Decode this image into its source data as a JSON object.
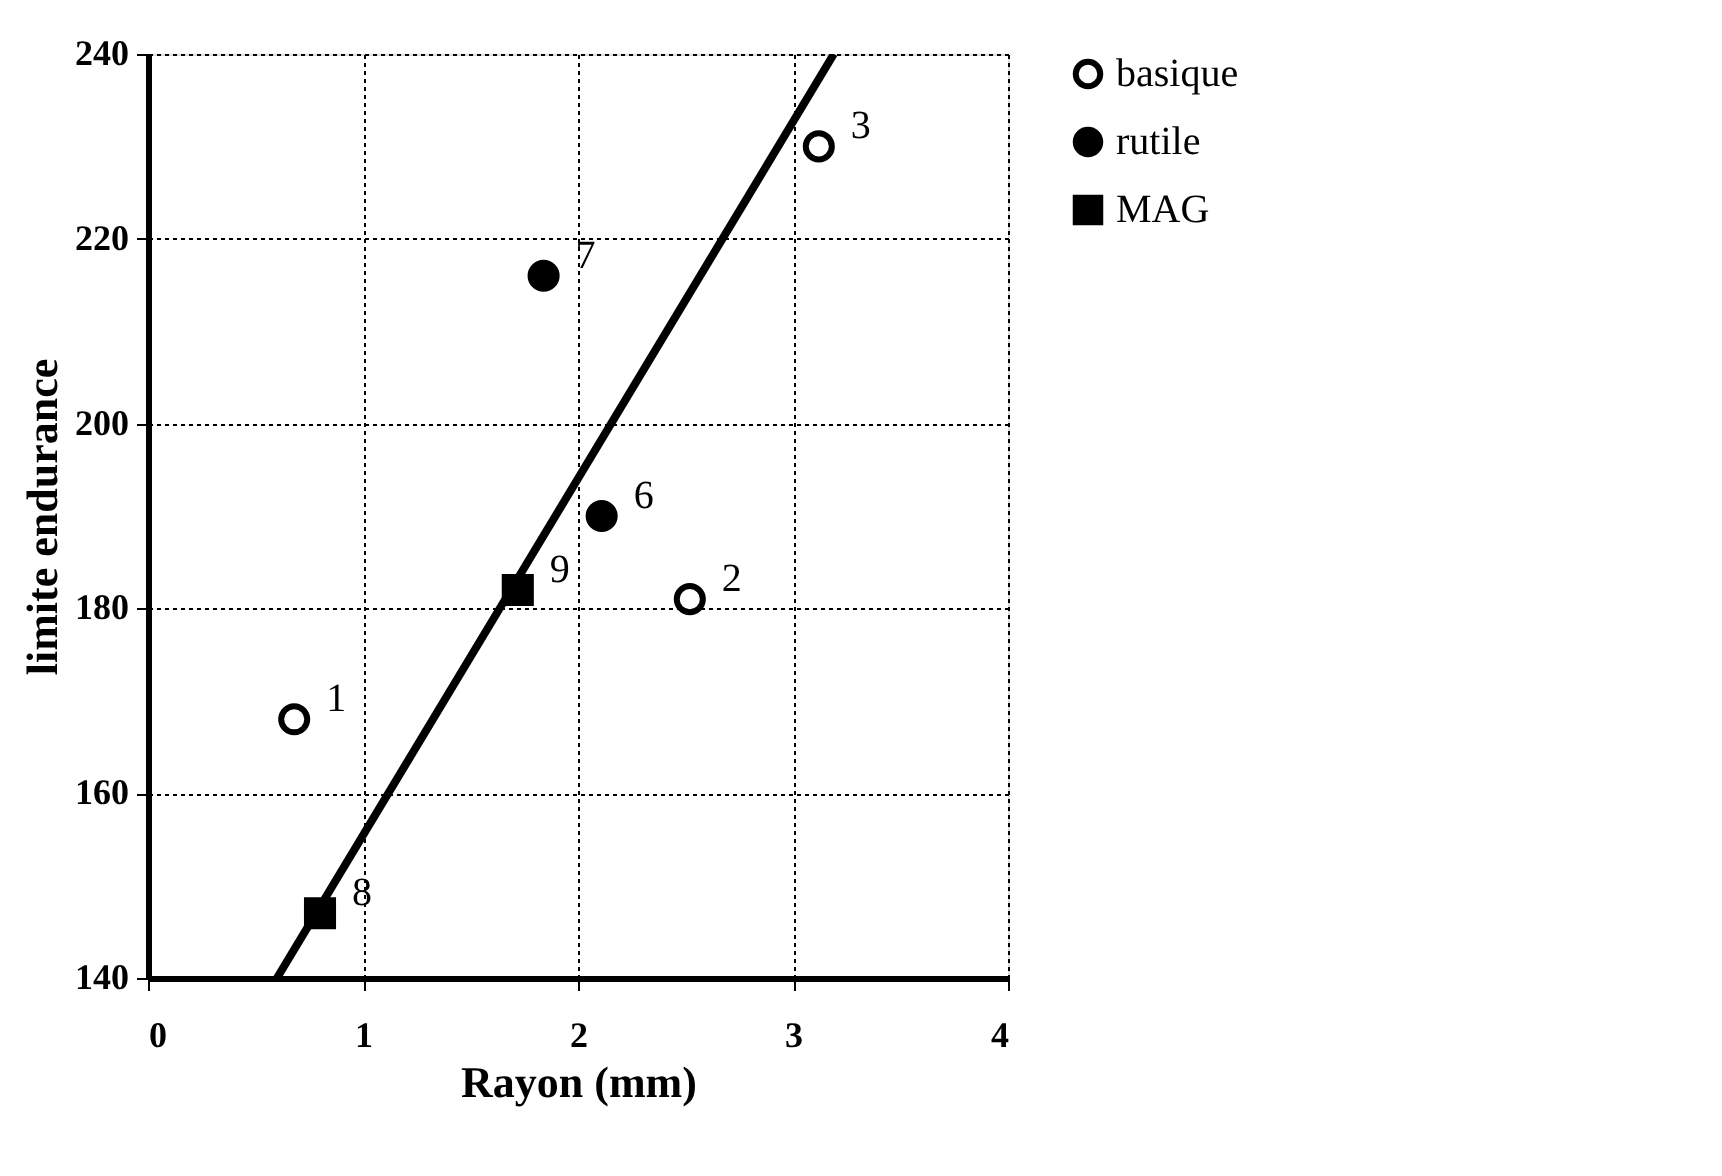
{
  "chart_data": {
    "type": "scatter",
    "xlabel": "Rayon (mm)",
    "ylabel": "limite endurance",
    "xlim": [
      0,
      4
    ],
    "xticks": [
      0,
      1,
      2,
      3,
      4
    ],
    "ylim": [
      140,
      240
    ],
    "yticks": [
      140,
      160,
      180,
      200,
      220,
      240
    ],
    "grid": true,
    "legend": "right",
    "series": [
      {
        "name": "basique",
        "color": "#000000",
        "marker": "circle",
        "x": [
          0.68,
          2.52,
          3.12
        ],
        "values": [
          168,
          181,
          230
        ]
      },
      {
        "name": "rutile",
        "color": "#000000",
        "marker": "circle",
        "x": [
          2.11,
          1.84
        ],
        "values": [
          190,
          216
        ]
      },
      {
        "name": "MAG",
        "color": "#000000",
        "marker": "square",
        "x": [
          0.8,
          1.72
        ],
        "values": [
          147,
          182
        ]
      },
      {
        "type": "line",
        "color": "#000000",
        "x": [
          0.6,
          3.19
        ],
        "values": [
          140,
          240
        ]
      }
    ],
    "annotations": [
      {
        "text": "1",
        "x": 0.68,
        "y": 168
      },
      {
        "text": "2",
        "x": 2.52,
        "y": 181
      },
      {
        "text": "3",
        "x": 3.12,
        "y": 230
      },
      {
        "text": "6",
        "x": 2.11,
        "y": 190
      },
      {
        "text": "7",
        "x": 1.84,
        "y": 216
      },
      {
        "text": "8",
        "x": 0.8,
        "y": 147
      },
      {
        "text": "9",
        "x": 1.72,
        "y": 182
      }
    ]
  }
}
